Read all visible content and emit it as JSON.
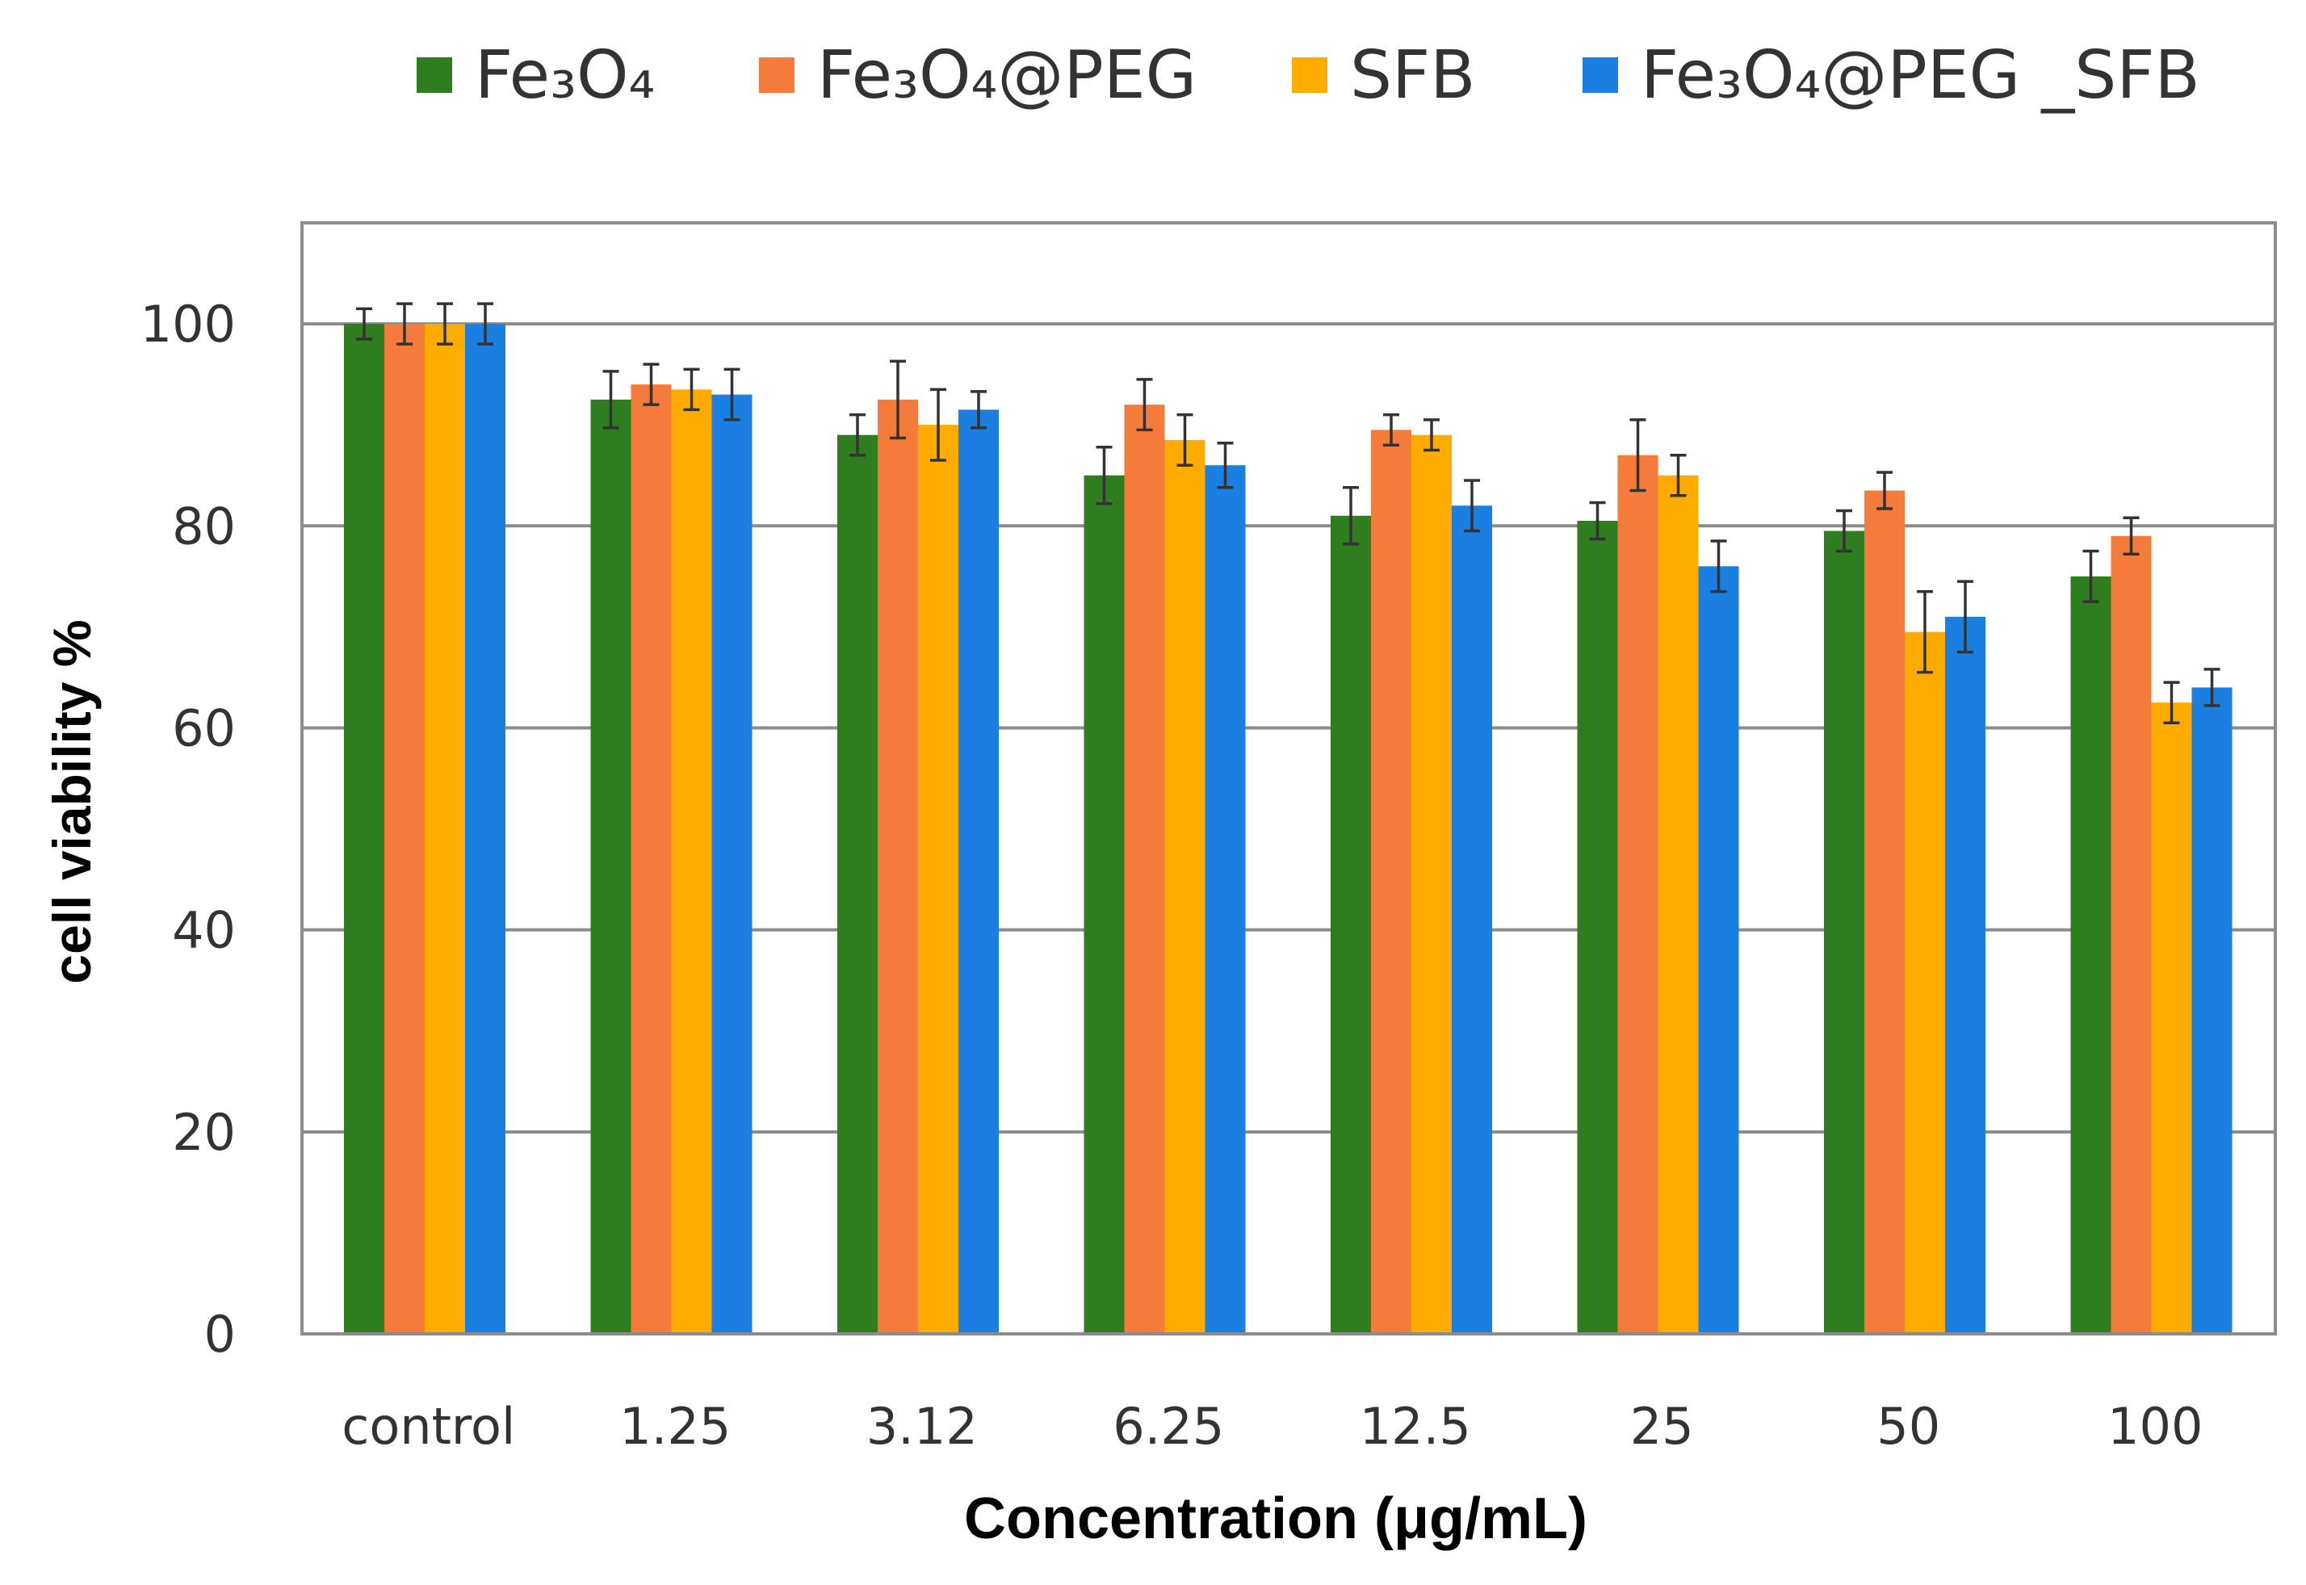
{
  "chart_data": {
    "type": "bar",
    "title": "",
    "xlabel": "Concentration (μg/mL)",
    "ylabel": "cell viability %",
    "ylim": [
      0,
      110
    ],
    "yticks": [
      0,
      20,
      40,
      60,
      80,
      100
    ],
    "grid": true,
    "legend_position": "top",
    "categories": [
      "control",
      "1.25",
      "3.12",
      "6.25",
      "12.5",
      "25",
      "50",
      "100"
    ],
    "series": [
      {
        "name": "Fe₃O₄",
        "color": "#2e7d1e",
        "values": [
          100,
          92.5,
          89,
          85,
          81,
          80.5,
          79.5,
          75
        ],
        "errors": [
          1.5,
          2.8,
          2.0,
          2.8,
          2.8,
          1.8,
          2.0,
          2.5
        ]
      },
      {
        "name": "Fe₃O₄@PEG",
        "color": "#f47b3a",
        "values": [
          100,
          94,
          92.5,
          92,
          89.5,
          87,
          83.5,
          79
        ],
        "errors": [
          2.0,
          2.0,
          3.8,
          2.5,
          1.5,
          3.5,
          1.8,
          1.8
        ]
      },
      {
        "name": "SFB",
        "color": "#ffab00",
        "values": [
          100,
          93.5,
          90,
          88.5,
          89,
          85,
          69.5,
          62.5
        ],
        "errors": [
          2.0,
          2.0,
          3.5,
          2.5,
          1.5,
          2.0,
          4.0,
          2.0
        ]
      },
      {
        "name": "Fe₃O₄@PEG _SFB",
        "color": "#1a7fe0",
        "values": [
          100,
          93,
          91.5,
          86,
          82,
          76,
          71,
          64
        ],
        "errors": [
          2.0,
          2.5,
          1.8,
          2.2,
          2.5,
          2.5,
          3.5,
          1.8
        ]
      }
    ]
  }
}
